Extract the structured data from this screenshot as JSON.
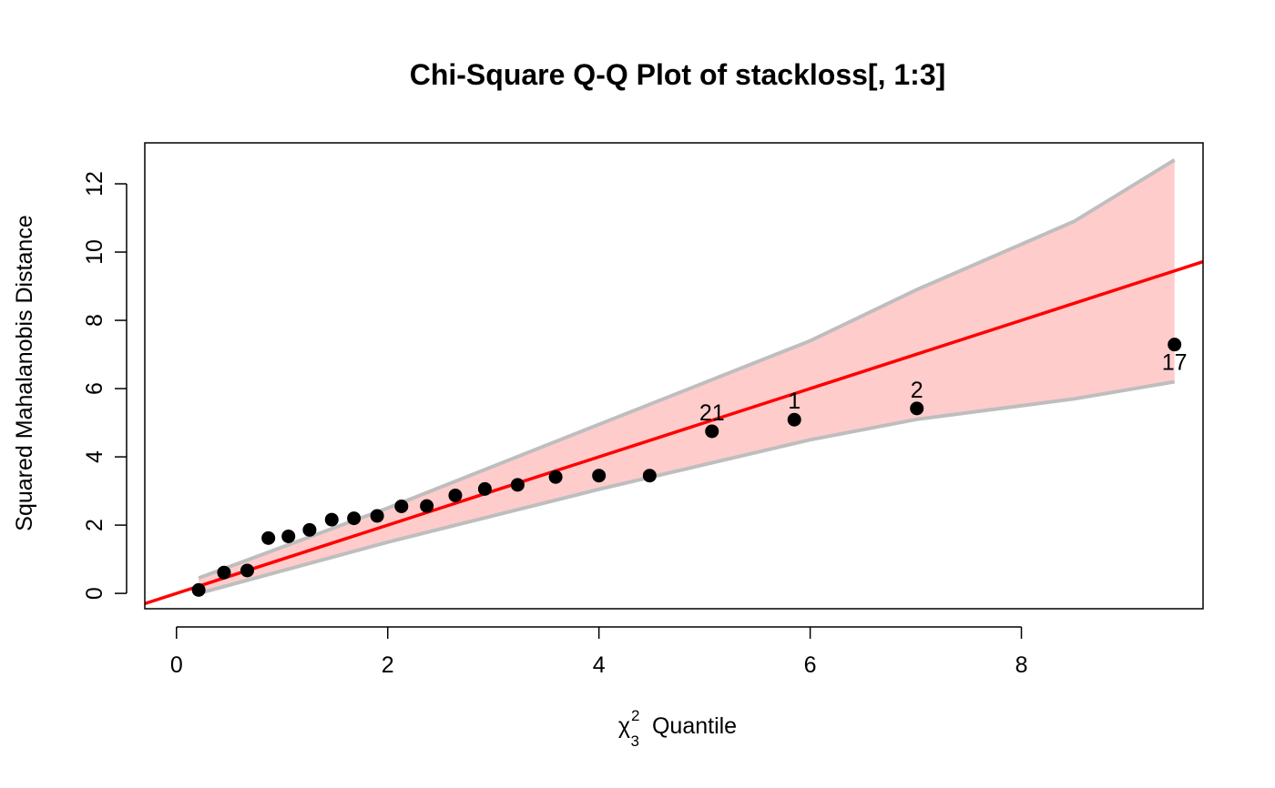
{
  "chart_data": {
    "type": "scatter",
    "title": "Chi-Square Q-Q Plot of stackloss[, 1:3]",
    "xlabel": {
      "symbol": "χ",
      "superscript": "2",
      "subscript": "3",
      "text": "Quantile"
    },
    "ylabel": "Squared Mahalanobis Distance",
    "xlim": [
      -0.3,
      9.72
    ],
    "ylim": [
      -0.45,
      13.2
    ],
    "x_ticks": [
      0,
      2,
      4,
      6,
      8
    ],
    "y_ticks": [
      0,
      2,
      4,
      6,
      8,
      10,
      12
    ],
    "grid": false,
    "points": {
      "x": [
        0.21,
        0.45,
        0.67,
        0.87,
        1.06,
        1.26,
        1.47,
        1.68,
        1.9,
        2.13,
        2.37,
        2.64,
        2.92,
        3.23,
        3.59,
        4.0,
        4.48,
        5.07,
        5.85,
        7.01,
        9.45
      ],
      "y": [
        0.1,
        0.61,
        0.67,
        1.62,
        1.67,
        1.86,
        2.16,
        2.2,
        2.27,
        2.55,
        2.56,
        2.87,
        3.06,
        3.18,
        3.41,
        3.45,
        3.45,
        4.75,
        5.09,
        5.42,
        7.29
      ],
      "color": "#000000"
    },
    "point_labels": [
      {
        "index": 17,
        "text": "21"
      },
      {
        "index": 18,
        "text": "1"
      },
      {
        "index": 19,
        "text": "2"
      },
      {
        "index": 20,
        "text": "17"
      }
    ],
    "reference_line": {
      "intercept": 0.0,
      "slope": 1.0,
      "color": "#ff0000"
    },
    "envelope": {
      "x": [
        0.21,
        2.0,
        4.0,
        6.0,
        7.01,
        8.5,
        9.45
      ],
      "upper": [
        0.45,
        2.5,
        4.95,
        7.4,
        8.9,
        10.9,
        12.7
      ],
      "lower": [
        0.0,
        1.5,
        3.05,
        4.5,
        5.1,
        5.7,
        6.2
      ],
      "fill_color": "#ffcccc",
      "border_color": "#bebebe"
    }
  }
}
